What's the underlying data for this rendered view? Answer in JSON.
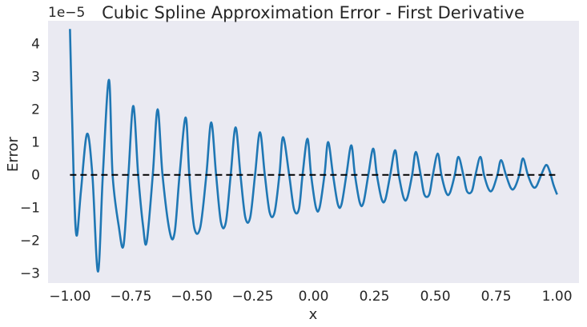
{
  "chart_data": {
    "type": "line",
    "title": "Cubic Spline Approximation Error - First Derivative",
    "xlabel": "x",
    "ylabel": "Error",
    "y_multiplier_label": "1e−5",
    "xlim": [
      -1.09,
      1.09
    ],
    "ylim": [
      -3.3,
      4.7
    ],
    "x_ticks": [
      -1.0,
      -0.75,
      -0.5,
      -0.25,
      0.0,
      0.25,
      0.5,
      0.75,
      1.0
    ],
    "x_tick_labels": [
      "−1.00",
      "−0.75",
      "−0.50",
      "−0.25",
      "0.00",
      "0.25",
      "0.50",
      "0.75",
      "1.00"
    ],
    "y_ticks": [
      -3,
      -2,
      -1,
      0,
      1,
      2,
      3,
      4
    ],
    "y_tick_labels": [
      "−3",
      "−2",
      "−1",
      "0",
      "1",
      "2",
      "3",
      "4"
    ],
    "grid": false,
    "background": "#eaeaf2",
    "series": [
      {
        "style": "solid",
        "color": "#1f77b4",
        "x": [
          -1.0,
          -0.985,
          -0.973,
          -0.955,
          -0.93,
          -0.908,
          -0.885,
          -0.865,
          -0.84,
          -0.825,
          -0.8,
          -0.78,
          -0.76,
          -0.74,
          -0.72,
          -0.7,
          -0.685,
          -0.66,
          -0.64,
          -0.62,
          -0.59,
          -0.57,
          -0.55,
          -0.525,
          -0.51,
          -0.49,
          -0.465,
          -0.44,
          -0.42,
          -0.4,
          -0.38,
          -0.36,
          -0.34,
          -0.32,
          -0.3,
          -0.28,
          -0.26,
          -0.24,
          -0.22,
          -0.2,
          -0.18,
          -0.16,
          -0.14,
          -0.125,
          -0.1,
          -0.08,
          -0.06,
          -0.045,
          -0.025,
          -0.01,
          0.01,
          0.025,
          0.045,
          0.06,
          0.08,
          0.1,
          0.115,
          0.135,
          0.155,
          0.17,
          0.19,
          0.205,
          0.225,
          0.245,
          0.26,
          0.28,
          0.295,
          0.315,
          0.335,
          0.35,
          0.37,
          0.385,
          0.405,
          0.42,
          0.44,
          0.455,
          0.475,
          0.49,
          0.51,
          0.525,
          0.545,
          0.56,
          0.58,
          0.595,
          0.615,
          0.63,
          0.65,
          0.665,
          0.685,
          0.7,
          0.72,
          0.735,
          0.755,
          0.77,
          0.79,
          0.81,
          0.825,
          0.845,
          0.86,
          0.88,
          0.9,
          0.915,
          0.935,
          0.955,
          0.97,
          0.985,
          1.0
        ],
        "y": [
          4.45,
          0.0,
          -1.85,
          -0.5,
          1.25,
          0.0,
          -2.95,
          0.0,
          2.9,
          0.0,
          -1.55,
          -2.15,
          0.0,
          2.1,
          0.0,
          -1.55,
          -2.05,
          0.0,
          2.0,
          0.0,
          -1.75,
          -1.75,
          0.0,
          1.75,
          0.0,
          -1.6,
          -1.6,
          0.0,
          1.6,
          0.0,
          -1.45,
          -1.45,
          0.0,
          1.45,
          0.0,
          -1.3,
          -1.3,
          0.0,
          1.3,
          0.0,
          -1.15,
          -1.15,
          0.0,
          1.15,
          0.0,
          -1.05,
          -1.05,
          0.0,
          1.1,
          0.0,
          -1.0,
          -1.0,
          0.0,
          1.0,
          0.0,
          -0.9,
          -0.9,
          0.0,
          0.9,
          0.0,
          -0.85,
          -0.85,
          0.0,
          0.8,
          0.0,
          -0.75,
          -0.75,
          0.0,
          0.75,
          0.0,
          -0.7,
          -0.7,
          0.0,
          0.7,
          0.0,
          -0.6,
          -0.6,
          0.0,
          0.65,
          0.0,
          -0.55,
          -0.55,
          0.0,
          0.55,
          0.0,
          -0.5,
          -0.5,
          0.0,
          0.55,
          0.0,
          -0.45,
          -0.45,
          0.0,
          0.45,
          0.0,
          -0.4,
          -0.4,
          0.0,
          0.5,
          0.0,
          -0.35,
          -0.35,
          0.0,
          0.3,
          0.1,
          -0.3,
          -0.6
        ]
      },
      {
        "style": "dashed",
        "color": "#000000",
        "x": [
          -1.0,
          1.0
        ],
        "y": [
          0.0,
          0.0
        ]
      }
    ]
  }
}
